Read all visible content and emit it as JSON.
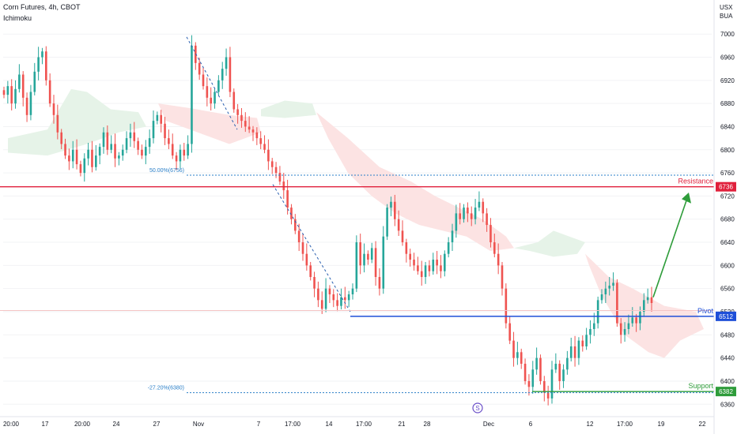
{
  "header": {
    "title": "Corn Futures, 4h, CBOT",
    "indicator": "Ichimoku",
    "currency_line1": "USX",
    "currency_line2": "BUA"
  },
  "colors": {
    "up": "#26a69a",
    "down": "#ef5350",
    "resistance": "#e0203c",
    "pivot": "#1e4fd8",
    "support": "#2e9c3a",
    "fib": "#2a7fc8",
    "arrow": "#2e9c3a",
    "cloud_bull": "#e6f3e8",
    "cloud_bear": "#fce3e3",
    "icon": "#6a4fc8"
  },
  "chart_data": {
    "type": "candlestick",
    "symbol": "Corn Futures",
    "timeframe": "4h",
    "exchange": "CBOT",
    "indicators": [
      "Ichimoku"
    ],
    "yticks": [
      6360,
      6400,
      6440,
      6480,
      6520,
      6560,
      6600,
      6640,
      6680,
      6720,
      6760,
      6800,
      6840,
      6880,
      6920,
      6960,
      7000
    ],
    "ylim": [
      6344,
      7018
    ],
    "xticks": [
      "20:00",
      "17",
      "20:00",
      "24",
      "27",
      "Nov",
      "7",
      "17:00",
      "14",
      "17:00",
      "21",
      "28",
      "Dec",
      "6",
      "12",
      "17:00",
      "19",
      "22"
    ],
    "levels": [
      {
        "name": "Resistance",
        "value": 6736,
        "label": "6736"
      },
      {
        "name": "Pivot",
        "value": 6512,
        "label": "6512"
      },
      {
        "name": "Support",
        "value": 6382,
        "label": "6382"
      }
    ],
    "fibonacci": [
      {
        "label": "50.00%(6756)",
        "value": 6756
      },
      {
        "label": "-27.20%(6380)",
        "value": 6380
      }
    ],
    "closes": [
      6895,
      6910,
      6880,
      6905,
      6930,
      6890,
      6860,
      6900,
      6935,
      6960,
      6970,
      6920,
      6880,
      6860,
      6830,
      6810,
      6790,
      6780,
      6800,
      6775,
      6760,
      6785,
      6800,
      6770,
      6790,
      6805,
      6830,
      6800,
      6810,
      6785,
      6790,
      6800,
      6820,
      6830,
      6815,
      6800,
      6790,
      6805,
      6820,
      6850,
      6860,
      6845,
      6820,
      6810,
      6790,
      6780,
      6800,
      6790,
      6810,
      6980,
      6950,
      6930,
      6910,
      6890,
      6880,
      6900,
      6920,
      6940,
      6960,
      6900,
      6870,
      6860,
      6850,
      6840,
      6835,
      6830,
      6820,
      6810,
      6800,
      6780,
      6770,
      6760,
      6745,
      6730,
      6700,
      6680,
      6660,
      6640,
      6620,
      6600,
      6580,
      6560,
      6540,
      6525,
      6560,
      6550,
      6540,
      6530,
      6545,
      6540,
      6550,
      6560,
      6640,
      6600,
      6620,
      6610,
      6630,
      6580,
      6560,
      6650,
      6700,
      6710,
      6680,
      6660,
      6640,
      6620,
      6610,
      6600,
      6590,
      6580,
      6600,
      6590,
      6610,
      6600,
      6590,
      6620,
      6640,
      6660,
      6690,
      6680,
      6700,
      6690,
      6680,
      6700,
      6710,
      6690,
      6670,
      6640,
      6620,
      6600,
      6560,
      6500,
      6470,
      6440,
      6450,
      6430,
      6400,
      6390,
      6420,
      6440,
      6400,
      6380,
      6370,
      6420,
      6430,
      6400,
      6420,
      6440,
      6460,
      6440,
      6470,
      6460,
      6480,
      6490,
      6500,
      6540,
      6550,
      6560,
      6565,
      6570,
      6500,
      6480,
      6490,
      6500,
      6510,
      6500,
      6520,
      6540,
      6545,
      6535
    ]
  }
}
